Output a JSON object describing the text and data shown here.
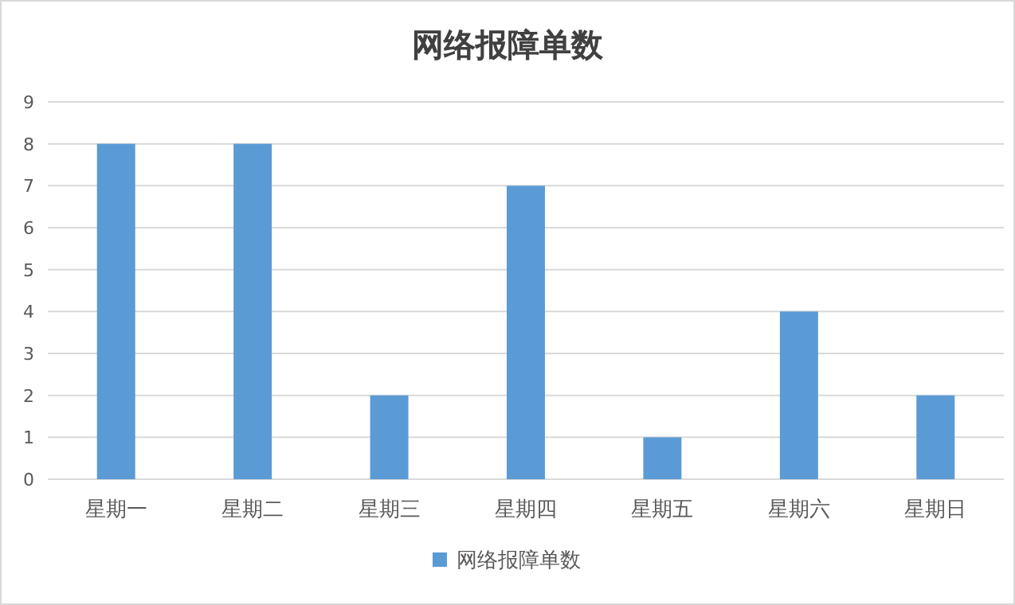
{
  "chart_data": {
    "type": "bar",
    "title": "网络报障单数",
    "categories": [
      "星期一",
      "星期二",
      "星期三",
      "星期四",
      "星期五",
      "星期六",
      "星期日"
    ],
    "series": [
      {
        "name": "网络报障单数",
        "color": "#5b9bd5",
        "values": [
          8,
          8,
          2,
          7,
          1,
          4,
          2
        ]
      }
    ],
    "ylim": [
      0,
      9
    ],
    "yticks": [
      0,
      1,
      2,
      3,
      4,
      5,
      6,
      7,
      8,
      9
    ],
    "grid": "y",
    "legend": "bottom"
  }
}
